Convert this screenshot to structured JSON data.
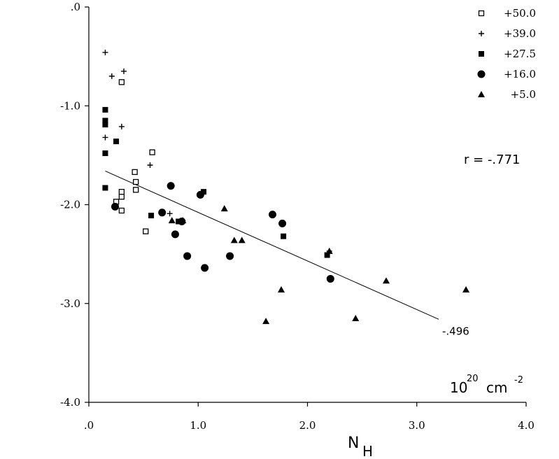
{
  "chart_data": {
    "type": "scatter",
    "title": "",
    "xlabel": {
      "main": "N",
      "sub": "H"
    },
    "ylabel": "",
    "xlim": [
      0,
      4.0
    ],
    "ylim": [
      -4.0,
      0
    ],
    "x_ticks": [
      {
        "value": 0,
        "label": ".0"
      },
      {
        "value": 1,
        "label": "1.0"
      },
      {
        "value": 2,
        "label": "2.0"
      },
      {
        "value": 3,
        "label": "3.0"
      },
      {
        "value": 4,
        "label": "4.0"
      }
    ],
    "y_ticks": [
      {
        "value": 0,
        "label": ".0"
      },
      {
        "value": -1,
        "label": "-1.0"
      },
      {
        "value": -2,
        "label": "-2.0"
      },
      {
        "value": -3,
        "label": "-3.0"
      },
      {
        "value": -4,
        "label": "-4.0"
      }
    ],
    "unit_label": {
      "base": "10",
      "exp1": "20",
      "unit": "cm",
      "exp2": "-2"
    },
    "grid": false,
    "legend_position": "top-right",
    "correlation_label": "r =  -.771",
    "fit_line": {
      "x": [
        0.15,
        3.2
      ],
      "y": [
        -1.66,
        -3.16
      ],
      "label": "-.496"
    },
    "series": [
      {
        "name": "+50.0",
        "marker": "open-square",
        "points": [
          [
            0.3,
            -0.76
          ],
          [
            0.3,
            -1.87
          ],
          [
            0.3,
            -1.92
          ],
          [
            0.25,
            -1.97
          ],
          [
            0.3,
            -2.06
          ],
          [
            0.42,
            -1.67
          ],
          [
            0.43,
            -1.77
          ],
          [
            0.43,
            -1.85
          ],
          [
            0.58,
            -1.47
          ],
          [
            0.52,
            -2.27
          ]
        ]
      },
      {
        "name": "+39.0",
        "marker": "plus",
        "points": [
          [
            0.15,
            -0.46
          ],
          [
            0.21,
            -0.7
          ],
          [
            0.32,
            -0.65
          ],
          [
            0.3,
            -1.21
          ],
          [
            0.15,
            -1.32
          ],
          [
            0.56,
            -1.6
          ],
          [
            0.74,
            -2.09
          ],
          [
            2.2,
            -2.47
          ]
        ]
      },
      {
        "name": "+27.5",
        "marker": "filled-square",
        "points": [
          [
            0.15,
            -1.04
          ],
          [
            0.15,
            -1.15
          ],
          [
            0.15,
            -1.19
          ],
          [
            0.15,
            -1.48
          ],
          [
            0.15,
            -1.83
          ],
          [
            0.25,
            -1.36
          ],
          [
            0.57,
            -2.11
          ],
          [
            0.82,
            -2.17
          ],
          [
            1.05,
            -1.87
          ],
          [
            1.78,
            -2.32
          ],
          [
            2.18,
            -2.51
          ]
        ]
      },
      {
        "name": "+16.0",
        "marker": "filled-circle",
        "points": [
          [
            0.24,
            -2.02
          ],
          [
            0.67,
            -2.08
          ],
          [
            0.75,
            -1.81
          ],
          [
            0.79,
            -2.3
          ],
          [
            0.85,
            -2.17
          ],
          [
            0.9,
            -2.52
          ],
          [
            1.02,
            -1.9
          ],
          [
            1.06,
            -2.64
          ],
          [
            1.29,
            -2.52
          ],
          [
            1.68,
            -2.1
          ],
          [
            1.77,
            -2.19
          ],
          [
            2.21,
            -2.75
          ]
        ]
      },
      {
        "name": "+5.0",
        "marker": "filled-triangle",
        "points": [
          [
            0.76,
            -2.16
          ],
          [
            0.86,
            -2.16
          ],
          [
            1.24,
            -2.04
          ],
          [
            1.33,
            -2.36
          ],
          [
            1.4,
            -2.36
          ],
          [
            1.62,
            -3.18
          ],
          [
            1.76,
            -2.86
          ],
          [
            2.2,
            -2.47
          ],
          [
            2.44,
            -3.15
          ],
          [
            2.72,
            -2.77
          ],
          [
            3.45,
            -2.86
          ]
        ]
      }
    ]
  }
}
